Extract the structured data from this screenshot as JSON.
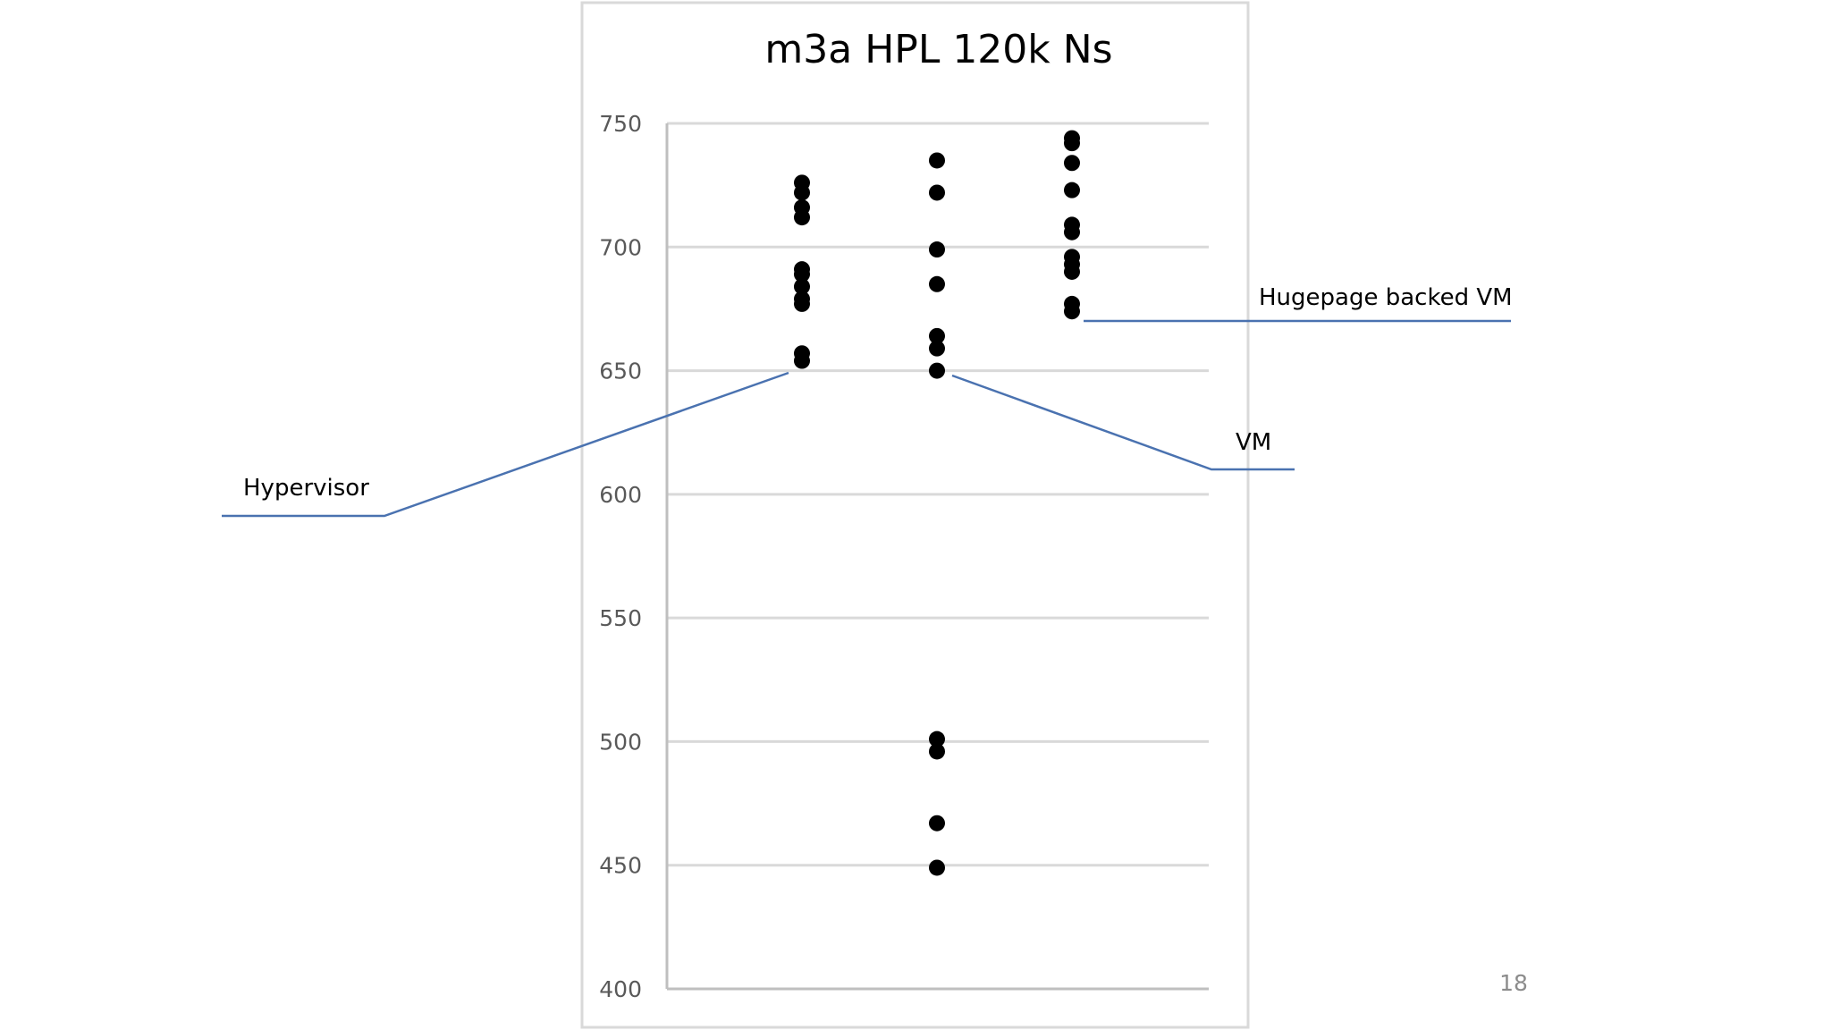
{
  "chart_data": {
    "type": "scatter",
    "title": "m3a HPL 120k Ns",
    "xlabel": "",
    "ylabel": "",
    "ylim": [
      400,
      750
    ],
    "yticks": [
      "750",
      "700",
      "650",
      "600",
      "550",
      "500",
      "450",
      "400"
    ],
    "grid": true,
    "legend": "none",
    "series": [
      {
        "x": 1,
        "values": [
          726,
          722,
          716,
          712,
          691,
          689,
          684,
          679,
          677,
          657,
          654
        ]
      },
      {
        "x": 2,
        "values": [
          735,
          722,
          699,
          685,
          664,
          659,
          650,
          501,
          496,
          467,
          449
        ]
      },
      {
        "x": 3,
        "values": [
          744,
          742,
          734,
          723,
          709,
          706,
          696,
          693,
          690,
          677,
          674
        ]
      }
    ],
    "annotations": [
      {
        "text": "Hypervisor",
        "series": 0
      },
      {
        "text": "VM",
        "series": 1
      },
      {
        "text": "Hugepage backed VM",
        "series": 2
      }
    ],
    "colors": {
      "point": "#000000",
      "grid": "#d9d9d9",
      "axis": "#bfbfbf",
      "frame": "#d9d9d9",
      "callout": "#4a72b0"
    }
  },
  "page_number": "18"
}
